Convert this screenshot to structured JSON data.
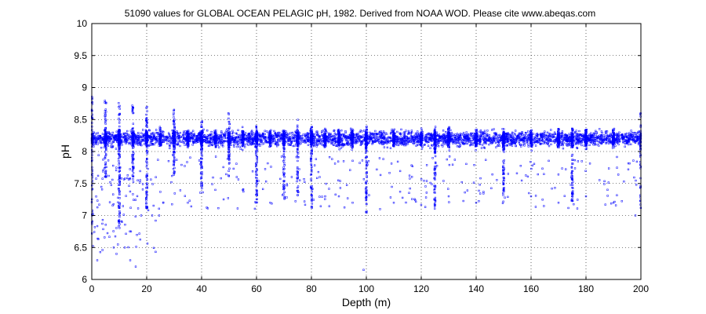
{
  "chart_data": {
    "type": "scatter",
    "title": "51090 values for GLOBAL OCEAN PELAGIC pH, 1982.  Derived from NOAA WOD. Please cite www.abeqas.com",
    "xlabel": "Depth (m)",
    "ylabel": "pH",
    "xlim": [
      0,
      200
    ],
    "ylim": [
      6,
      10
    ],
    "x_ticks": [
      0,
      20,
      40,
      60,
      80,
      100,
      120,
      140,
      160,
      180,
      200
    ],
    "y_ticks": [
      6,
      6.5,
      7,
      7.5,
      8,
      8.5,
      9,
      9.5,
      10
    ],
    "x_tick_labels": [
      "0",
      "20",
      "40",
      "60",
      "80",
      "100",
      "120",
      "140",
      "160",
      "180",
      "200"
    ],
    "y_tick_labels": [
      "6",
      "6.5",
      "7",
      "7.5",
      "8",
      "8.5",
      "9",
      "9.5",
      "10"
    ],
    "grid": true,
    "grid_style": "dotted",
    "marker_color": "#0000ff",
    "series": [
      {
        "count": 51090,
        "dense_band": {
          "center": 8.2,
          "low": 7.9,
          "high": 8.5
        },
        "standard_depths": [
          0,
          5,
          10,
          15,
          20,
          25,
          30,
          35,
          40,
          45,
          50,
          55,
          60,
          65,
          70,
          75,
          80,
          85,
          90,
          95,
          100,
          110,
          120,
          125,
          130,
          140,
          150,
          160,
          170,
          175,
          180,
          190,
          200
        ],
        "spikes": [
          {
            "x": 0,
            "min": 6.7,
            "max": 8.9
          },
          {
            "x": 5,
            "min": 7.6,
            "max": 8.8
          },
          {
            "x": 10,
            "min": 6.8,
            "max": 8.8
          },
          {
            "x": 15,
            "min": 7.5,
            "max": 8.8
          },
          {
            "x": 20,
            "min": 7.1,
            "max": 8.7
          },
          {
            "x": 30,
            "min": 7.6,
            "max": 8.7
          },
          {
            "x": 40,
            "min": 7.4,
            "max": 8.5
          },
          {
            "x": 50,
            "min": 7.6,
            "max": 8.6
          },
          {
            "x": 60,
            "min": 7.2,
            "max": 8.4
          },
          {
            "x": 70,
            "min": 7.2,
            "max": 8.4
          },
          {
            "x": 75,
            "min": 7.3,
            "max": 8.5
          },
          {
            "x": 80,
            "min": 7.1,
            "max": 8.4
          },
          {
            "x": 100,
            "min": 7.0,
            "max": 8.4
          },
          {
            "x": 125,
            "min": 7.1,
            "max": 8.4
          },
          {
            "x": 150,
            "min": 7.2,
            "max": 8.4
          },
          {
            "x": 175,
            "min": 7.2,
            "max": 8.4
          },
          {
            "x": 200,
            "min": 7.1,
            "max": 8.6
          }
        ],
        "outliers": [
          [
            2,
            6.3
          ],
          [
            8,
            6.5
          ],
          [
            9,
            6.4
          ],
          [
            11,
            6.9
          ],
          [
            12,
            6.5
          ],
          [
            14,
            6.3
          ],
          [
            16,
            6.2
          ],
          [
            18,
            7.0
          ],
          [
            22,
            7.0
          ],
          [
            26,
            7.2
          ],
          [
            35,
            7.2
          ],
          [
            45,
            7.4
          ],
          [
            55,
            7.4
          ],
          [
            65,
            7.2
          ],
          [
            85,
            7.3
          ],
          [
            90,
            7.3
          ],
          [
            95,
            7.2
          ],
          [
            99,
            6.15
          ],
          [
            105,
            7.1
          ],
          [
            110,
            7.2
          ],
          [
            130,
            7.3
          ],
          [
            140,
            7.2
          ],
          [
            160,
            7.3
          ],
          [
            170,
            7.2
          ],
          [
            180,
            7.3
          ],
          [
            190,
            7.2
          ],
          [
            198,
            7.0
          ]
        ]
      }
    ]
  }
}
